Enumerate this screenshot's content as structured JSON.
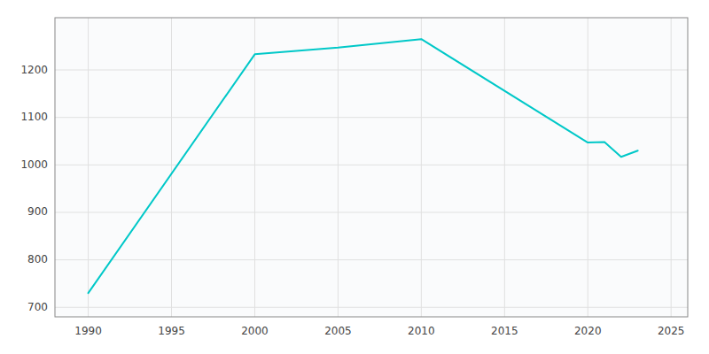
{
  "chart_data": {
    "type": "line",
    "x": [
      1990,
      2000,
      2005,
      2010,
      2020,
      2021,
      2022,
      2023
    ],
    "values": [
      730,
      1233,
      1247,
      1265,
      1047,
      1048,
      1017,
      1030
    ],
    "color": "#00c8c8",
    "xlim": [
      1988,
      2026
    ],
    "ylim": [
      680,
      1310
    ],
    "xticks": [
      1990,
      1995,
      2000,
      2005,
      2010,
      2015,
      2020,
      2025
    ],
    "yticks": [
      700,
      800,
      900,
      1000,
      1100,
      1200
    ],
    "grid": true
  }
}
